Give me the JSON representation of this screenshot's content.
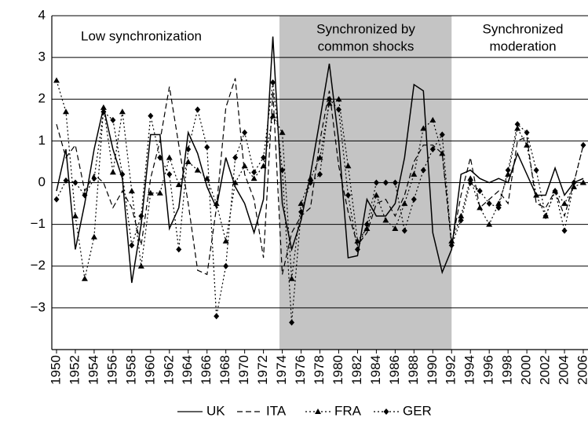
{
  "chart_data": {
    "type": "line",
    "annotations": [
      {
        "lines": [
          "Low synchronization"
        ]
      },
      {
        "lines": [
          "Synchronized by",
          "common shocks"
        ]
      },
      {
        "lines": [
          "Synchronized",
          "moderation"
        ]
      }
    ],
    "shaded_x": [
      1973.7,
      1992
    ],
    "shade_color": "#c4c4c4",
    "x": [
      1950,
      1951,
      1952,
      1953,
      1954,
      1955,
      1956,
      1957,
      1958,
      1959,
      1960,
      1961,
      1962,
      1963,
      1964,
      1965,
      1966,
      1967,
      1968,
      1969,
      1970,
      1971,
      1972,
      1973,
      1974,
      1975,
      1976,
      1977,
      1978,
      1979,
      1980,
      1981,
      1982,
      1983,
      1984,
      1985,
      1986,
      1987,
      1988,
      1989,
      1990,
      1991,
      1992,
      1993,
      1994,
      1995,
      1996,
      1997,
      1998,
      1999,
      2000,
      2001,
      2002,
      2003,
      2004,
      2005,
      2006
    ],
    "series": [
      {
        "name": "UK",
        "color": "#000000",
        "dash": "solid",
        "marker": "none",
        "values": [
          -0.2,
          0.8,
          -1.6,
          -0.5,
          0.8,
          1.8,
          0.8,
          0.1,
          -2.4,
          -1.0,
          1.15,
          1.15,
          -1.1,
          -0.6,
          1.2,
          0.7,
          -0.1,
          -0.6,
          0.6,
          -0.1,
          -0.5,
          -1.2,
          -0.4,
          3.5,
          -0.5,
          -1.6,
          -0.9,
          0.2,
          1.5,
          2.85,
          1.0,
          -1.8,
          -1.75,
          -0.4,
          -0.8,
          -0.8,
          -0.5,
          0.6,
          2.35,
          2.2,
          -1.2,
          -2.15,
          -1.6,
          0.2,
          0.3,
          0.1,
          0.0,
          0.1,
          0.0,
          0.7,
          0.2,
          -0.3,
          -0.3,
          0.35,
          -0.3,
          0.0,
          0.1
        ]
      },
      {
        "name": "ITA",
        "color": "#000000",
        "dash": "dashed",
        "marker": "none",
        "values": [
          1.4,
          0.6,
          0.9,
          -0.2,
          0.2,
          0.0,
          -0.6,
          -0.2,
          -0.6,
          -1.5,
          0.1,
          1.0,
          2.3,
          0.9,
          -0.5,
          -2.1,
          -2.2,
          -0.6,
          1.8,
          2.5,
          0.2,
          -0.4,
          -1.8,
          2.2,
          -2.2,
          -1.2,
          -0.8,
          -0.6,
          1.0,
          2.2,
          0.4,
          -0.7,
          -1.5,
          -1.2,
          -0.5,
          -0.4,
          -0.8,
          -0.3,
          0.5,
          0.9,
          0.9,
          0.7,
          -1.5,
          -0.3,
          0.6,
          -0.6,
          -0.4,
          -0.2,
          -0.5,
          1.0,
          1.1,
          -0.5,
          -0.6,
          -0.2,
          -0.8,
          0.0,
          0.9
        ]
      },
      {
        "name": "FRA",
        "color": "#000000",
        "dash": "dotted",
        "marker": "triangle",
        "values": [
          2.45,
          1.7,
          -0.8,
          -2.3,
          -1.3,
          1.8,
          0.25,
          1.7,
          -0.2,
          -2.0,
          -0.25,
          -0.25,
          0.6,
          -0.05,
          0.5,
          0.3,
          0.1,
          -0.5,
          -1.4,
          0.0,
          0.4,
          0.1,
          0.4,
          1.6,
          1.2,
          -2.3,
          -0.5,
          0.1,
          0.6,
          1.9,
          2.0,
          0.4,
          -1.4,
          -1.1,
          -0.3,
          -0.9,
          -1.1,
          -0.5,
          0.2,
          1.3,
          1.5,
          0.7,
          -1.4,
          -0.8,
          0.1,
          -0.6,
          -1.0,
          -0.5,
          0.2,
          1.3,
          0.9,
          -0.3,
          -0.8,
          -0.2,
          -0.5,
          -0.1,
          0.0
        ]
      },
      {
        "name": "GER",
        "color": "#000000",
        "dash": "dotted",
        "marker": "diamond",
        "values": [
          -0.4,
          0.05,
          0.0,
          -0.3,
          0.1,
          1.7,
          1.5,
          0.2,
          -1.5,
          -0.8,
          1.6,
          0.6,
          0.2,
          -1.6,
          0.8,
          1.75,
          0.85,
          -3.2,
          -2.0,
          0.6,
          1.2,
          0.25,
          0.6,
          2.4,
          0.3,
          -3.35,
          -0.7,
          0.0,
          0.2,
          2.0,
          1.75,
          -0.3,
          -1.6,
          -1.0,
          0.0,
          0.0,
          0.0,
          -1.15,
          -0.4,
          0.3,
          0.8,
          1.15,
          -1.5,
          -0.9,
          0.0,
          -0.2,
          -0.5,
          -0.6,
          0.3,
          1.4,
          1.2,
          0.3,
          -0.8,
          -0.2,
          -1.15,
          0.0,
          0.9
        ]
      }
    ],
    "xlim": [
      1949.5,
      2006.5
    ],
    "xticks": [
      1950,
      1952,
      1954,
      1956,
      1958,
      1960,
      1962,
      1964,
      1966,
      1968,
      1970,
      1972,
      1974,
      1976,
      1978,
      1980,
      1982,
      1984,
      1986,
      1988,
      1990,
      1992,
      1994,
      1996,
      1998,
      2000,
      2002,
      2004,
      2006
    ],
    "ylim": [
      -4,
      4
    ],
    "yticks": [
      {
        "value": -3,
        "label": "−3"
      },
      {
        "value": -2,
        "label": "−2"
      },
      {
        "value": -1,
        "label": "−1"
      },
      0,
      1,
      2,
      3,
      4
    ],
    "grid": true,
    "legend": "bottom"
  }
}
